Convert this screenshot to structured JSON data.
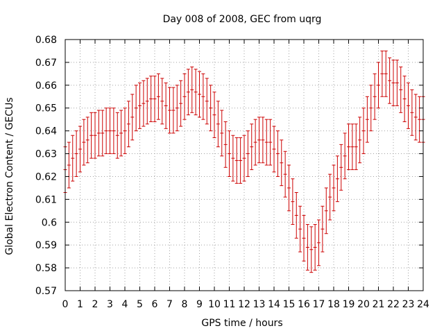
{
  "chart_data": {
    "type": "scatter",
    "title": "Day 008 of 2008, GEC from uqrg",
    "xlabel": "GPS time / hours",
    "ylabel": "Global Electron Content / GECUs",
    "xlim": [
      0,
      24
    ],
    "ylim": [
      0.57,
      0.68
    ],
    "grid": true,
    "error_bars": true,
    "color": "#cc0000",
    "x_ticks": [
      "0",
      "1",
      "2",
      "3",
      "4",
      "5",
      "6",
      "7",
      "8",
      "9",
      "10",
      "11",
      "12",
      "13",
      "14",
      "15",
      "16",
      "17",
      "18",
      "19",
      "20",
      "21",
      "22",
      "23",
      "24"
    ],
    "y_ticks": [
      "0.57",
      "0.58",
      "0.59",
      "0.6",
      "0.61",
      "0.62",
      "0.63",
      "0.64",
      "0.65",
      "0.66",
      "0.67",
      "0.68"
    ],
    "x": [
      0,
      0.25,
      0.5,
      0.75,
      1,
      1.25,
      1.5,
      1.75,
      2,
      2.25,
      2.5,
      2.75,
      3,
      3.25,
      3.5,
      3.75,
      4,
      4.25,
      4.5,
      4.75,
      5,
      5.25,
      5.5,
      5.75,
      6,
      6.25,
      6.5,
      6.75,
      7,
      7.25,
      7.5,
      7.75,
      8,
      8.25,
      8.5,
      8.75,
      9,
      9.25,
      9.5,
      9.75,
      10,
      10.25,
      10.5,
      10.75,
      11,
      11.25,
      11.5,
      11.75,
      12,
      12.25,
      12.5,
      12.75,
      13,
      13.25,
      13.5,
      13.75,
      14,
      14.25,
      14.5,
      14.75,
      15,
      15.25,
      15.5,
      15.75,
      16,
      16.25,
      16.5,
      16.75,
      17,
      17.25,
      17.5,
      17.75,
      18,
      18.25,
      18.5,
      18.75,
      19,
      19.25,
      19.5,
      19.75,
      20,
      20.25,
      20.5,
      20.75,
      21,
      21.25,
      21.5,
      21.75,
      22,
      22.25,
      22.5,
      22.75,
      23,
      23.25,
      23.5,
      23.75,
      24
    ],
    "y": [
      0.623,
      0.625,
      0.628,
      0.63,
      0.632,
      0.635,
      0.636,
      0.638,
      0.638,
      0.639,
      0.639,
      0.64,
      0.64,
      0.64,
      0.638,
      0.639,
      0.64,
      0.643,
      0.646,
      0.65,
      0.651,
      0.652,
      0.653,
      0.654,
      0.654,
      0.655,
      0.653,
      0.651,
      0.649,
      0.649,
      0.65,
      0.652,
      0.655,
      0.657,
      0.658,
      0.657,
      0.656,
      0.655,
      0.653,
      0.65,
      0.647,
      0.643,
      0.639,
      0.634,
      0.63,
      0.628,
      0.627,
      0.627,
      0.628,
      0.63,
      0.633,
      0.635,
      0.636,
      0.636,
      0.635,
      0.635,
      0.632,
      0.63,
      0.626,
      0.621,
      0.615,
      0.609,
      0.603,
      0.597,
      0.593,
      0.589,
      0.588,
      0.589,
      0.591,
      0.597,
      0.605,
      0.611,
      0.615,
      0.619,
      0.624,
      0.629,
      0.633,
      0.633,
      0.633,
      0.636,
      0.64,
      0.645,
      0.65,
      0.655,
      0.66,
      0.665,
      0.665,
      0.662,
      0.661,
      0.661,
      0.658,
      0.654,
      0.651,
      0.648,
      0.646,
      0.645,
      0.645
    ],
    "error": [
      0.01,
      0.01,
      0.01,
      0.01,
      0.01,
      0.01,
      0.01,
      0.01,
      0.01,
      0.01,
      0.01,
      0.01,
      0.01,
      0.01,
      0.01,
      0.01,
      0.01,
      0.01,
      0.01,
      0.01,
      0.01,
      0.01,
      0.01,
      0.01,
      0.01,
      0.01,
      0.01,
      0.01,
      0.01,
      0.01,
      0.01,
      0.01,
      0.01,
      0.01,
      0.01,
      0.01,
      0.01,
      0.01,
      0.01,
      0.01,
      0.01,
      0.01,
      0.01,
      0.01,
      0.01,
      0.01,
      0.01,
      0.01,
      0.01,
      0.01,
      0.01,
      0.01,
      0.01,
      0.01,
      0.01,
      0.01,
      0.01,
      0.01,
      0.01,
      0.01,
      0.01,
      0.01,
      0.01,
      0.01,
      0.01,
      0.01,
      0.01,
      0.01,
      0.01,
      0.01,
      0.01,
      0.01,
      0.01,
      0.01,
      0.01,
      0.01,
      0.01,
      0.01,
      0.01,
      0.01,
      0.01,
      0.01,
      0.01,
      0.01,
      0.01,
      0.01,
      0.01,
      0.01,
      0.01,
      0.01,
      0.01,
      0.01,
      0.01,
      0.01,
      0.01,
      0.01,
      0.01
    ]
  }
}
